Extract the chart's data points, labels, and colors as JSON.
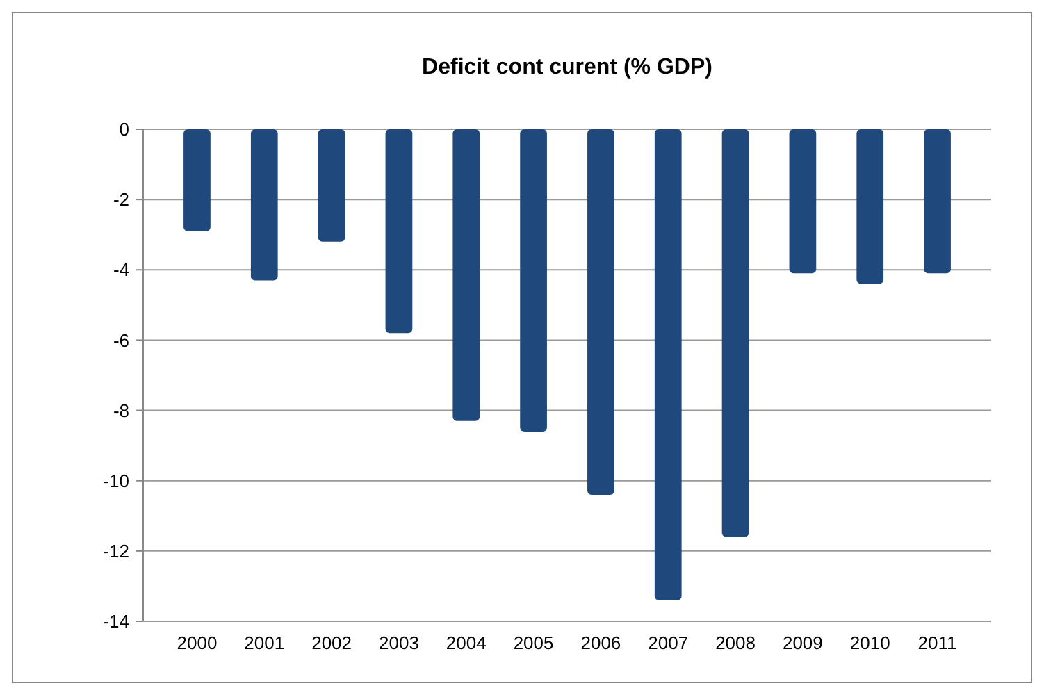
{
  "chart_data": {
    "type": "bar",
    "title": "Deficit cont curent (% GDP)",
    "categories": [
      "2000",
      "2001",
      "2002",
      "2003",
      "2004",
      "2005",
      "2006",
      "2007",
      "2008",
      "2009",
      "2010",
      "2011"
    ],
    "values": [
      -2.9,
      -4.3,
      -3.2,
      -5.8,
      -8.3,
      -8.6,
      -10.4,
      -13.4,
      -11.6,
      -4.1,
      -4.4,
      -4.1
    ],
    "color": "#1f497d",
    "ylim": [
      -14,
      0
    ],
    "yticks": [
      -14,
      -12,
      -10,
      -8,
      -6,
      -4,
      -2,
      0
    ],
    "grid": "y"
  }
}
